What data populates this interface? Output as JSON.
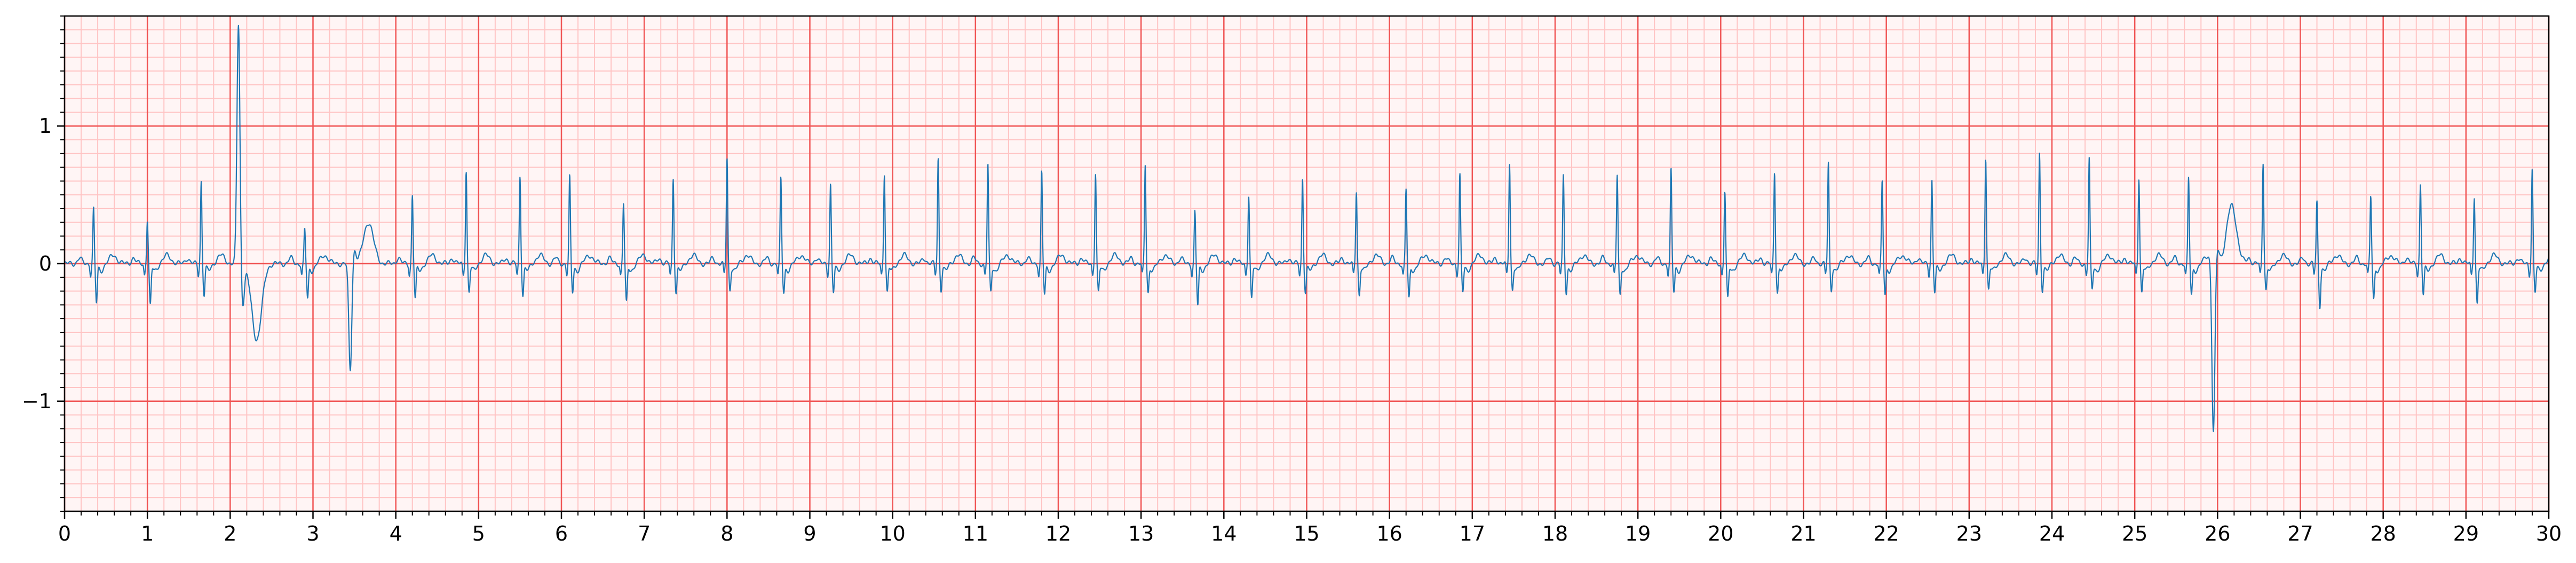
{
  "chart_data": {
    "type": "line",
    "title": "",
    "xlabel": "",
    "ylabel": "",
    "xlim": [
      0,
      30
    ],
    "ylim": [
      -1.8,
      1.8
    ],
    "x_ticks": [
      0,
      1,
      2,
      3,
      4,
      5,
      6,
      7,
      8,
      9,
      10,
      11,
      12,
      13,
      14,
      15,
      16,
      17,
      18,
      19,
      20,
      21,
      22,
      23,
      24,
      25,
      26,
      27,
      28,
      29,
      30
    ],
    "x_tick_labels": [
      "0",
      "1",
      "2",
      "3",
      "4",
      "5",
      "6",
      "7",
      "8",
      "9",
      "10",
      "11",
      "12",
      "13",
      "14",
      "15",
      "16",
      "17",
      "18",
      "19",
      "20",
      "21",
      "22",
      "23",
      "24",
      "25",
      "26",
      "27",
      "28",
      "29",
      "30"
    ],
    "y_ticks": [
      -1,
      0,
      1
    ],
    "y_tick_labels": [
      "−1",
      "0",
      "1"
    ],
    "x_minor_step": 0.2,
    "y_minor_step": 0.1,
    "grid": {
      "major": true,
      "minor": true,
      "major_color": "#f05555",
      "minor_color": "#ffc4c4"
    },
    "background": "#fff5f5",
    "line_color": "#1f77b4",
    "series": [
      {
        "beats": [
          {
            "t": 0.35,
            "r": 0.4,
            "s": -0.28,
            "t_wave": 0.06
          },
          {
            "t": 1.0,
            "r": 0.32,
            "s": -0.3,
            "t_wave": 0.06
          },
          {
            "t": 1.65,
            "r": 0.6,
            "s": -0.22,
            "t_wave": 0.06
          },
          {
            "t": 2.1,
            "r": 1.75,
            "s": -0.3,
            "t_wave": -0.55,
            "wide": true
          },
          {
            "t": 2.9,
            "r": 0.25,
            "s": -0.25,
            "t_wave": 0.06
          },
          {
            "t": 3.45,
            "r": -0.78,
            "s": 0.1,
            "t_wave": 0.3,
            "wide": true
          },
          {
            "t": 4.2,
            "r": 0.5,
            "s": -0.25,
            "t_wave": 0.06
          },
          {
            "t": 4.85,
            "r": 0.68,
            "s": -0.2,
            "t_wave": 0.06
          },
          {
            "t": 5.5,
            "r": 0.64,
            "s": -0.22,
            "t_wave": 0.06
          },
          {
            "t": 6.1,
            "r": 0.63,
            "s": -0.2,
            "t_wave": 0.06
          },
          {
            "t": 6.75,
            "r": 0.44,
            "s": -0.28,
            "t_wave": 0.06
          },
          {
            "t": 7.35,
            "r": 0.62,
            "s": -0.2,
            "t_wave": 0.06
          },
          {
            "t": 8.0,
            "r": 0.77,
            "s": -0.18,
            "t_wave": 0.06
          },
          {
            "t": 8.65,
            "r": 0.62,
            "s": -0.2,
            "t_wave": 0.06
          },
          {
            "t": 9.25,
            "r": 0.58,
            "s": -0.2,
            "t_wave": 0.06
          },
          {
            "t": 9.9,
            "r": 0.66,
            "s": -0.2,
            "t_wave": 0.06
          },
          {
            "t": 10.55,
            "r": 0.77,
            "s": -0.18,
            "t_wave": 0.06
          },
          {
            "t": 11.15,
            "r": 0.72,
            "s": -0.2,
            "t_wave": 0.06
          },
          {
            "t": 11.8,
            "r": 0.67,
            "s": -0.22,
            "t_wave": 0.06
          },
          {
            "t": 12.45,
            "r": 0.66,
            "s": -0.2,
            "t_wave": 0.06
          },
          {
            "t": 13.05,
            "r": 0.72,
            "s": -0.2,
            "t_wave": 0.06
          },
          {
            "t": 13.65,
            "r": 0.38,
            "s": -0.3,
            "t_wave": 0.06
          },
          {
            "t": 14.3,
            "r": 0.5,
            "s": -0.25,
            "t_wave": 0.06
          },
          {
            "t": 14.95,
            "r": 0.62,
            "s": -0.2,
            "t_wave": 0.06
          },
          {
            "t": 15.6,
            "r": 0.53,
            "s": -0.22,
            "t_wave": 0.06
          },
          {
            "t": 16.2,
            "r": 0.54,
            "s": -0.25,
            "t_wave": 0.06
          },
          {
            "t": 16.85,
            "r": 0.65,
            "s": -0.2,
            "t_wave": 0.06
          },
          {
            "t": 17.45,
            "r": 0.74,
            "s": -0.18,
            "t_wave": 0.06
          },
          {
            "t": 18.1,
            "r": 0.64,
            "s": -0.2,
            "t_wave": 0.06
          },
          {
            "t": 18.75,
            "r": 0.64,
            "s": -0.22,
            "t_wave": 0.06
          },
          {
            "t": 19.4,
            "r": 0.68,
            "s": -0.2,
            "t_wave": 0.06
          },
          {
            "t": 20.05,
            "r": 0.53,
            "s": -0.25,
            "t_wave": 0.06
          },
          {
            "t": 20.65,
            "r": 0.67,
            "s": -0.2,
            "t_wave": 0.06
          },
          {
            "t": 21.3,
            "r": 0.73,
            "s": -0.18,
            "t_wave": 0.06
          },
          {
            "t": 21.95,
            "r": 0.6,
            "s": -0.22,
            "t_wave": 0.06
          },
          {
            "t": 22.55,
            "r": 0.61,
            "s": -0.2,
            "t_wave": 0.06
          },
          {
            "t": 23.2,
            "r": 0.78,
            "s": -0.18,
            "t_wave": 0.06
          },
          {
            "t": 23.85,
            "r": 0.8,
            "s": -0.18,
            "t_wave": 0.06
          },
          {
            "t": 24.45,
            "r": 0.76,
            "s": -0.18,
            "t_wave": 0.06
          },
          {
            "t": 25.05,
            "r": 0.63,
            "s": -0.2,
            "t_wave": 0.06
          },
          {
            "t": 25.65,
            "r": 0.62,
            "s": -0.22,
            "t_wave": 0.06
          },
          {
            "t": 25.95,
            "r": -1.25,
            "s": 0.1,
            "t_wave": 0.42,
            "wide": true
          },
          {
            "t": 26.55,
            "r": 0.74,
            "s": -0.18,
            "t_wave": 0.06
          },
          {
            "t": 27.2,
            "r": 0.45,
            "s": -0.3,
            "t_wave": 0.06
          },
          {
            "t": 27.85,
            "r": 0.49,
            "s": -0.25,
            "t_wave": 0.06
          },
          {
            "t": 28.45,
            "r": 0.58,
            "s": -0.22,
            "t_wave": 0.06
          },
          {
            "t": 29.1,
            "r": 0.49,
            "s": -0.28,
            "t_wave": 0.06
          },
          {
            "t": 29.8,
            "r": 0.69,
            "s": -0.2,
            "t_wave": 0.06
          }
        ]
      }
    ]
  }
}
